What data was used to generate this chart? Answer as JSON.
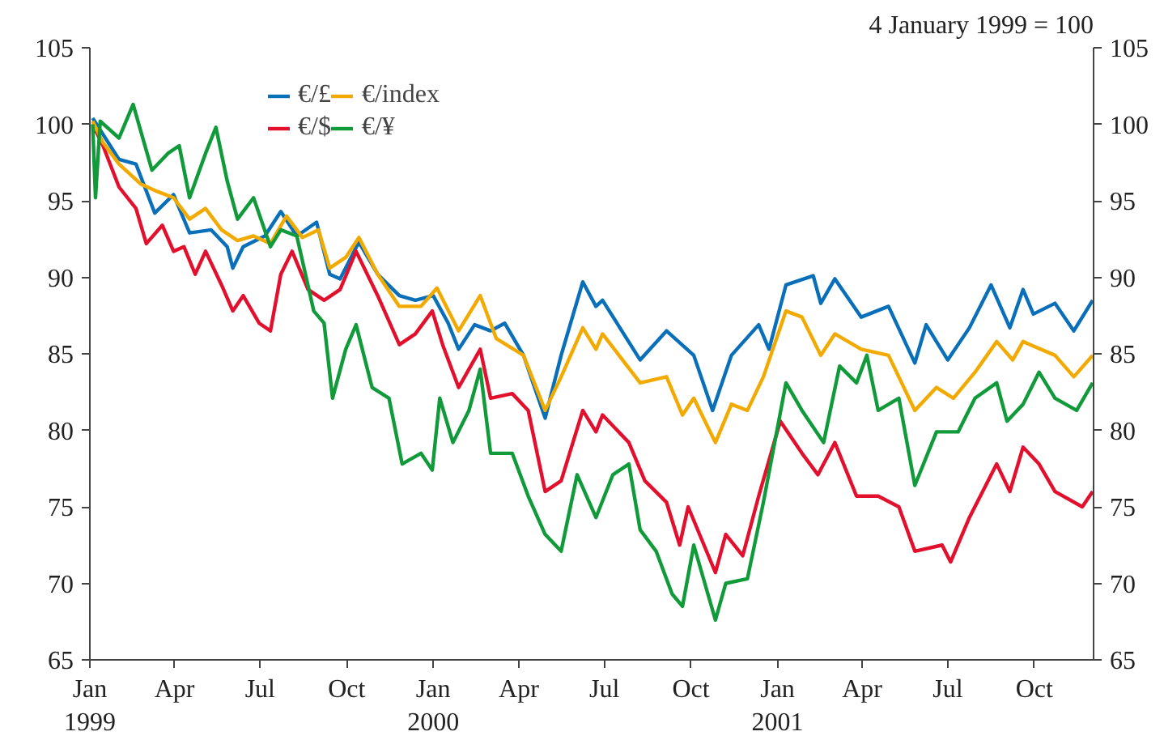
{
  "chart_data": {
    "type": "line",
    "annotations": [
      "4 January 1999 = 100"
    ],
    "xlim": [
      "1999-01-01",
      "2001-12-03"
    ],
    "xticks": [
      {
        "value": "1999-01-01",
        "label": "Jan\n1999"
      },
      {
        "value": "1999-04-01",
        "label": "Apr"
      },
      {
        "value": "1999-07-01",
        "label": "Jul"
      },
      {
        "value": "1999-10-01",
        "label": "Oct"
      },
      {
        "value": "2000-01-01",
        "label": "Jan\n2000"
      },
      {
        "value": "2000-04-01",
        "label": "Apr"
      },
      {
        "value": "2000-07-01",
        "label": "Jul"
      },
      {
        "value": "2000-10-01",
        "label": "Oct"
      },
      {
        "value": "2001-01-01",
        "label": "Jan\n2001"
      },
      {
        "value": "2001-04-01",
        "label": "Apr"
      },
      {
        "value": "2001-07-01",
        "label": "Jul"
      },
      {
        "value": "2001-10-01",
        "label": "Oct"
      }
    ],
    "ylim": [
      65,
      105
    ],
    "yticks": [
      65,
      70,
      75,
      80,
      85,
      90,
      95,
      100,
      105
    ],
    "y2lim": [
      65,
      105
    ],
    "y2ticks": [
      65,
      70,
      75,
      80,
      85,
      90,
      95,
      100,
      105
    ],
    "grid": false,
    "legend": "top",
    "line_style": "solid",
    "marker": "none",
    "series": [
      {
        "name": "€/£",
        "color": "#0a6fb9",
        "x": [
          "1999-01-04",
          "1999-02-01",
          "1999-02-19",
          "1999-03-11",
          "1999-03-31",
          "1999-04-17",
          "1999-05-10",
          "1999-05-27",
          "1999-06-02",
          "1999-06-13",
          "1999-07-06",
          "1999-07-23",
          "1999-08-09",
          "1999-08-30",
          "1999-09-13",
          "1999-09-24",
          "1999-10-14",
          "1999-11-03",
          "1999-11-26",
          "1999-12-13",
          "2000-01-01",
          "2000-01-17",
          "2000-01-28",
          "2000-02-14",
          "2000-03-02",
          "2000-03-17",
          "2000-04-06",
          "2000-04-29",
          "2000-05-16",
          "2000-06-08",
          "2000-06-22",
          "2000-06-29",
          "2000-08-08",
          "2000-09-05",
          "2000-10-04",
          "2000-10-24",
          "2000-11-13",
          "2000-12-12",
          "2000-12-23",
          "2001-01-10",
          "2001-02-08",
          "2001-02-16",
          "2001-03-03",
          "2001-03-31",
          "2001-04-29",
          "2001-05-27",
          "2001-06-08",
          "2001-07-01",
          "2001-07-24",
          "2001-08-16",
          "2001-09-05",
          "2001-09-19",
          "2001-09-30",
          "2001-10-23",
          "2001-11-12",
          "2001-12-02"
        ],
        "values": [
          100.4,
          97.7,
          97.4,
          94.2,
          95.4,
          92.9,
          93.1,
          92,
          90.6,
          92,
          92.7,
          94.3,
          92.7,
          93.6,
          90.2,
          89.9,
          92.3,
          90.2,
          88.8,
          88.5,
          88.8,
          87,
          85.3,
          86.9,
          86.5,
          87,
          84.9,
          80.8,
          84.9,
          89.7,
          88.1,
          88.5,
          84.6,
          86.5,
          84.9,
          81.3,
          84.9,
          86.9,
          85.3,
          89.5,
          90.1,
          88.3,
          89.9,
          87.4,
          88.1,
          84.4,
          86.9,
          84.6,
          86.7,
          89.5,
          86.7,
          89.2,
          87.6,
          88.3,
          86.5,
          88.5
        ]
      },
      {
        "name": "€/$",
        "color": "#e2102d",
        "x": [
          "1999-01-04",
          "1999-01-15",
          "1999-02-01",
          "1999-02-19",
          "1999-03-02",
          "1999-03-19",
          "1999-03-31",
          "1999-04-11",
          "1999-04-23",
          "1999-05-04",
          "1999-05-21",
          "1999-06-02",
          "1999-06-13",
          "1999-06-30",
          "1999-07-12",
          "1999-07-23",
          "1999-08-04",
          "1999-08-21",
          "1999-09-07",
          "1999-09-24",
          "1999-10-11",
          "1999-11-03",
          "1999-11-26",
          "1999-12-13",
          "1999-12-31",
          "2000-01-11",
          "2000-01-28",
          "2000-02-20",
          "2000-03-02",
          "2000-03-25",
          "2000-04-11",
          "2000-04-29",
          "2000-05-16",
          "2000-06-08",
          "2000-06-22",
          "2000-06-29",
          "2000-07-27",
          "2000-08-13",
          "2000-09-05",
          "2000-09-19",
          "2000-09-28",
          "2000-10-27",
          "2000-11-07",
          "2000-11-25",
          "2000-12-12",
          "2001-01-04",
          "2001-01-27",
          "2001-02-13",
          "2001-03-03",
          "2001-03-26",
          "2001-04-18",
          "2001-05-10",
          "2001-05-27",
          "2001-06-25",
          "2001-07-04",
          "2001-07-24",
          "2001-08-22",
          "2001-09-05",
          "2001-09-19",
          "2001-10-06",
          "2001-10-23",
          "2001-11-21",
          "2001-12-02"
        ],
        "values": [
          100,
          98.6,
          95.9,
          94.5,
          92.2,
          93.4,
          91.7,
          92,
          90.2,
          91.7,
          89.5,
          87.8,
          88.8,
          87,
          86.5,
          90.2,
          91.7,
          89.2,
          88.5,
          89.2,
          91.7,
          88.8,
          85.6,
          86.3,
          87.8,
          85.6,
          82.8,
          85.3,
          82.1,
          82.4,
          81.3,
          76,
          76.7,
          81.3,
          79.9,
          81,
          79.2,
          76.7,
          75.3,
          72.5,
          75,
          70.7,
          73.2,
          71.8,
          75.7,
          80.6,
          78.5,
          77.1,
          79.2,
          75.7,
          75.7,
          75,
          72.1,
          72.5,
          71.4,
          74.3,
          77.8,
          76,
          78.9,
          77.8,
          76,
          75,
          76
        ]
      },
      {
        "name": "€/index",
        "color": "#f2a900",
        "x": [
          "1999-01-04",
          "1999-01-15",
          "1999-02-01",
          "1999-02-24",
          "1999-03-14",
          "1999-03-31",
          "1999-04-17",
          "1999-05-04",
          "1999-05-21",
          "1999-06-07",
          "1999-06-24",
          "1999-07-12",
          "1999-07-29",
          "1999-08-15",
          "1999-09-01",
          "1999-09-13",
          "1999-09-30",
          "1999-10-14",
          "1999-11-03",
          "1999-11-26",
          "1999-12-19",
          "2000-01-05",
          "2000-01-28",
          "2000-02-20",
          "2000-03-08",
          "2000-04-06",
          "2000-04-29",
          "2000-05-16",
          "2000-06-08",
          "2000-06-22",
          "2000-06-29",
          "2000-08-08",
          "2000-09-05",
          "2000-09-22",
          "2000-10-04",
          "2000-10-27",
          "2000-11-13",
          "2000-11-30",
          "2000-12-17",
          "2001-01-10",
          "2001-01-27",
          "2001-02-16",
          "2001-03-03",
          "2001-03-31",
          "2001-04-29",
          "2001-05-27",
          "2001-06-19",
          "2001-07-07",
          "2001-07-30",
          "2001-08-22",
          "2001-09-08",
          "2001-09-19",
          "2001-10-23",
          "2001-11-12",
          "2001-12-02"
        ],
        "values": [
          100.2,
          98.8,
          97.4,
          96.1,
          95.6,
          95.2,
          93.8,
          94.5,
          93.1,
          92.4,
          92.7,
          92.2,
          94,
          92.6,
          93.1,
          90.6,
          91.3,
          92.6,
          90.2,
          88.1,
          88.1,
          89.3,
          86.5,
          88.8,
          86,
          84.9,
          81.3,
          83.5,
          86.7,
          85.3,
          86.3,
          83.1,
          83.5,
          81,
          82.1,
          79.2,
          81.7,
          81.3,
          83.5,
          87.8,
          87.4,
          84.9,
          86.3,
          85.3,
          84.9,
          81.3,
          82.8,
          82.1,
          83.8,
          85.8,
          84.6,
          85.8,
          84.9,
          83.5,
          84.9
        ]
      },
      {
        "name": "€/¥",
        "color": "#109a3a",
        "x": [
          "1999-01-04",
          "1999-01-07",
          "1999-01-12",
          "1999-02-01",
          "1999-02-16",
          "1999-03-08",
          "1999-03-25",
          "1999-04-06",
          "1999-04-17",
          "1999-05-04",
          "1999-05-15",
          "1999-05-27",
          "1999-06-07",
          "1999-06-24",
          "1999-07-12",
          "1999-07-23",
          "1999-08-09",
          "1999-08-27",
          "1999-09-07",
          "1999-09-16",
          "1999-09-30",
          "1999-10-11",
          "1999-10-28",
          "1999-11-15",
          "1999-11-29",
          "1999-12-19",
          "1999-12-31",
          "2000-01-08",
          "2000-01-22",
          "2000-02-08",
          "2000-02-20",
          "2000-03-02",
          "2000-03-25",
          "2000-04-11",
          "2000-04-29",
          "2000-05-16",
          "2000-06-02",
          "2000-06-22",
          "2000-07-10",
          "2000-07-27",
          "2000-08-08",
          "2000-08-25",
          "2000-09-11",
          "2000-09-22",
          "2000-10-04",
          "2000-10-27",
          "2000-11-07",
          "2000-11-30",
          "2000-12-17",
          "2001-01-10",
          "2001-01-27",
          "2001-02-19",
          "2001-03-08",
          "2001-03-26",
          "2001-04-06",
          "2001-04-18",
          "2001-05-10",
          "2001-05-27",
          "2001-06-19",
          "2001-07-12",
          "2001-07-30",
          "2001-08-22",
          "2001-09-02",
          "2001-09-19",
          "2001-10-06",
          "2001-10-23",
          "2001-11-15",
          "2001-12-02"
        ],
        "values": [
          100,
          95.2,
          100.2,
          99.1,
          101.3,
          97,
          98.1,
          98.6,
          95.2,
          98.1,
          99.8,
          96.3,
          93.8,
          95.2,
          92,
          93.1,
          92.7,
          87.8,
          87,
          82.1,
          85.3,
          86.9,
          82.8,
          82.1,
          77.8,
          78.5,
          77.4,
          82.1,
          79.2,
          81.3,
          84,
          78.5,
          78.5,
          75.7,
          73.2,
          72.1,
          77.1,
          74.3,
          77.1,
          77.8,
          73.5,
          72.1,
          69.3,
          68.5,
          72.5,
          67.6,
          70,
          70.3,
          75.3,
          83.1,
          81.3,
          79.2,
          84.2,
          83.1,
          84.9,
          81.3,
          82.1,
          76.4,
          79.9,
          79.9,
          82.1,
          83.1,
          80.6,
          81.7,
          83.8,
          82.1,
          81.3,
          83.1
        ]
      }
    ]
  }
}
